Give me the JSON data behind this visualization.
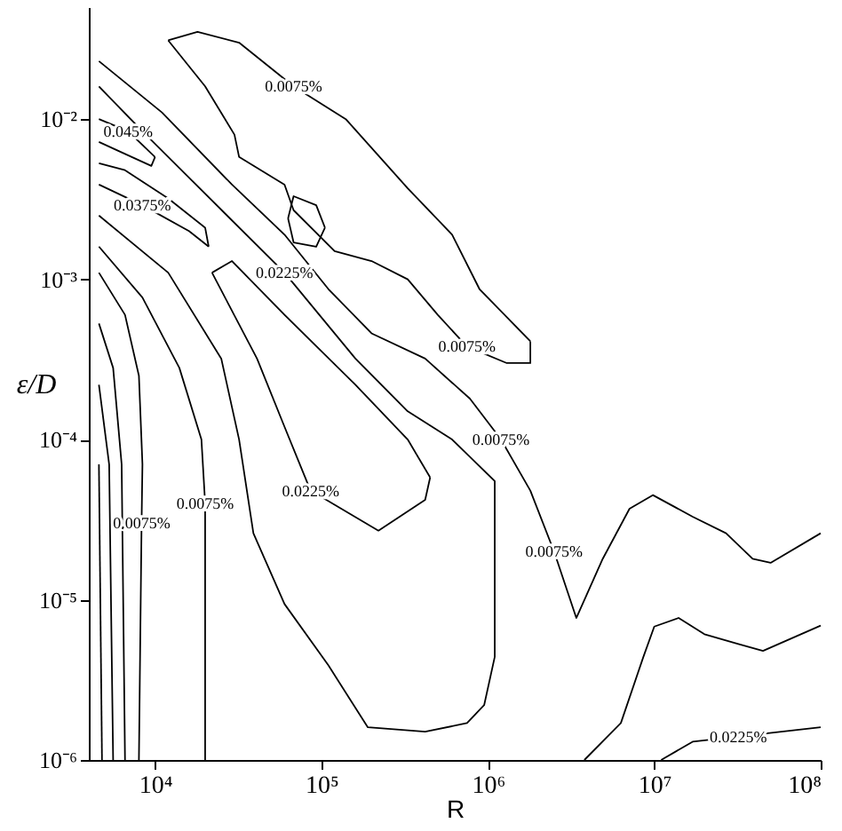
{
  "chart_data": {
    "type": "line",
    "xlabel": "R",
    "ylabel": "ε/D",
    "log": "xy",
    "grid": false,
    "line_style": "solid",
    "marker": "none",
    "xlim": [
      4000,
      100000000
    ],
    "ylim": [
      1e-06,
      0.05
    ],
    "xticks": [
      {
        "value": 10000,
        "label": "10⁴"
      },
      {
        "value": 100000,
        "label": "10⁵"
      },
      {
        "value": 1000000,
        "label": "10⁶"
      },
      {
        "value": 10000000,
        "label": "10⁷"
      },
      {
        "value": 100000000,
        "label": "10⁸"
      }
    ],
    "yticks": [
      {
        "value": 1e-06,
        "label": "10⁻⁶"
      },
      {
        "value": 1e-05,
        "label": "10⁻⁵"
      },
      {
        "value": 0.0001,
        "label": "10⁻⁴"
      },
      {
        "value": 0.001,
        "label": "10⁻³"
      },
      {
        "value": 0.01,
        "label": "10⁻²"
      }
    ],
    "series": [
      {
        "color": "#000000",
        "x": [
          12000,
          18000,
          32000,
          68000,
          140000,
          330000,
          610000,
          890000,
          1800000
        ],
        "values": [
          0.031,
          0.035,
          0.03,
          0.016,
          0.01,
          0.0037,
          0.0019,
          0.00087,
          0.00041
        ]
      },
      {
        "color": "#000000",
        "x": [
          12000,
          20000,
          30000,
          32000,
          60000,
          68000,
          120000,
          200000,
          330000,
          500000,
          750000,
          1300000,
          1800000,
          1800000
        ],
        "values": [
          0.031,
          0.016,
          0.008,
          0.0058,
          0.0039,
          0.0027,
          0.0015,
          0.0013,
          0.001,
          0.0006,
          0.00038,
          0.0003,
          0.0003,
          0.00041
        ]
      },
      {
        "color": "#000000",
        "x": [
          63000,
          68000,
          93000,
          105000
        ],
        "values": [
          0.0024,
          0.0033,
          0.0029,
          0.0021
        ]
      },
      {
        "color": "#000000",
        "x": [
          63000,
          68000,
          93000,
          105000
        ],
        "values": [
          0.0024,
          0.0017,
          0.0016,
          0.0021
        ]
      },
      {
        "color": "#000000",
        "x": [
          4600,
          11000,
          29000,
          60000,
          110000,
          200000,
          420000,
          780000,
          1200000,
          1800000,
          2500000,
          3400000,
          4900000,
          7100000,
          9800000,
          17000000,
          27000000,
          39000000,
          50000000,
          100000000
        ],
        "values": [
          0.023,
          0.011,
          0.0039,
          0.0019,
          0.00087,
          0.00046,
          0.00032,
          0.00018,
          0.0001,
          4.8e-05,
          2e-05,
          7.7e-06,
          1.8e-05,
          3.7e-05,
          4.5e-05,
          3.3e-05,
          2.6e-05,
          1.8e-05,
          1.7e-05,
          2.6e-05
        ]
      },
      {
        "color": "#000000",
        "x": [
          4600,
          8400,
          22000,
          60000,
          160000,
          330000,
          610000,
          1100000,
          1100000,
          1100000,
          950000,
          750000,
          420000,
          190000,
          110000,
          60000,
          39000,
          32000,
          25000,
          12000,
          4600
        ],
        "values": [
          0.016,
          0.0084,
          0.0031,
          0.0011,
          0.00032,
          0.00015,
          0.0001,
          5.5e-05,
          1.6e-05,
          4.4e-06,
          2.2e-06,
          1.7e-06,
          1.5e-06,
          1.6e-06,
          3.9e-06,
          9.4e-06,
          2.6e-05,
          0.0001,
          0.00032,
          0.0011,
          0.0025
        ]
      },
      {
        "color": "#000000",
        "x": [
          22000,
          29000,
          60000,
          160000,
          330000,
          450000
        ],
        "values": [
          0.0011,
          0.0013,
          0.0006,
          0.00022,
          0.0001,
          5.8e-05
        ]
      },
      {
        "color": "#000000",
        "x": [
          22000,
          41000,
          60000,
          86000,
          220000,
          420000,
          450000
        ],
        "values": [
          0.0011,
          0.00032,
          0.00012,
          4.8e-05,
          2.7e-05,
          4.2e-05,
          5.8e-05
        ]
      },
      {
        "color": "#000000",
        "x": [
          4600,
          8400,
          16000,
          21000
        ],
        "values": [
          0.0039,
          0.0029,
          0.002,
          0.0016
        ]
      },
      {
        "color": "#000000",
        "x": [
          4600,
          6600,
          12000,
          20000,
          21000
        ],
        "values": [
          0.0053,
          0.0048,
          0.0032,
          0.0021,
          0.0016
        ]
      },
      {
        "color": "#000000",
        "x": [
          4600,
          6900,
          10000
        ],
        "values": [
          0.01,
          0.0084,
          0.0058
        ]
      },
      {
        "color": "#000000",
        "x": [
          4600,
          6300,
          9500,
          10000
        ],
        "values": [
          0.0072,
          0.0062,
          0.0051,
          0.0058
        ]
      },
      {
        "color": "#000000",
        "x": [
          4600,
          8400,
          14000,
          19000,
          20000,
          20000
        ],
        "values": [
          0.0016,
          0.00077,
          0.00028,
          0.0001,
          4e-05,
          1e-06
        ]
      },
      {
        "color": "#000000",
        "x": [
          4600,
          6600,
          8000,
          8400,
          8300,
          8000
        ],
        "values": [
          0.0011,
          0.0006,
          0.00025,
          7e-05,
          3e-05,
          1e-06
        ]
      },
      {
        "color": "#000000",
        "x": [
          4600,
          5600,
          6300,
          6600
        ],
        "values": [
          0.00053,
          0.00028,
          7e-05,
          1e-06
        ]
      },
      {
        "color": "#000000",
        "x": [
          4600,
          5300,
          5600
        ],
        "values": [
          0.00022,
          7e-05,
          1e-06
        ]
      },
      {
        "color": "#000000",
        "x": [
          4600,
          4800
        ],
        "values": [
          7e-05,
          1e-06
        ]
      },
      {
        "color": "#000000",
        "x": [
          3800000,
          6300000,
          8600000,
          10000000,
          14000000,
          20000000,
          32000000,
          45000000,
          100000000
        ],
        "values": [
          1e-06,
          1.7e-06,
          4.4e-06,
          6.8e-06,
          7.7e-06,
          6.1e-06,
          5.3e-06,
          4.8e-06,
          6.9e-06
        ]
      },
      {
        "color": "#000000",
        "x": [
          11000000,
          17000000,
          32000000,
          100000000
        ],
        "values": [
          1e-06,
          1.3e-06,
          1.4e-06,
          1.6e-06
        ]
      }
    ],
    "annotations": [
      {
        "text": "0.0075%",
        "x": 68000,
        "y": 0.016
      },
      {
        "text": "0.0075%",
        "x": 750000,
        "y": 0.00038
      },
      {
        "text": "0.0075%",
        "x": 1200000,
        "y": 0.0001
      },
      {
        "text": "0.0075%",
        "x": 2500000,
        "y": 2e-05
      },
      {
        "text": "0.0225%",
        "x": 32000000,
        "y": 1.4e-06
      },
      {
        "text": "0.0225%",
        "x": 86000,
        "y": 4.8e-05
      },
      {
        "text": "0.0225%",
        "x": 60000,
        "y": 0.0011
      },
      {
        "text": "0.0375%",
        "x": 8400,
        "y": 0.0029
      },
      {
        "text": "0.045%",
        "x": 6900,
        "y": 0.0084
      },
      {
        "text": "0.0075%",
        "x": 20000,
        "y": 4e-05
      },
      {
        "text": "0.0075%",
        "x": 8300,
        "y": 3e-05
      }
    ]
  }
}
